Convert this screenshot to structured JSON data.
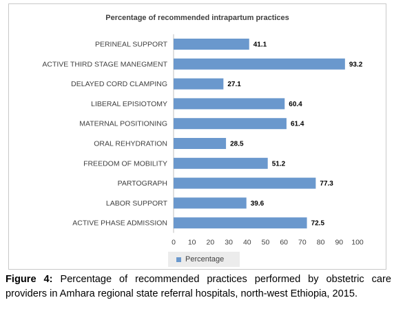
{
  "chart_data": {
    "type": "bar",
    "orientation": "horizontal",
    "title": "Percentage of recommended intrapartum practices",
    "categories": [
      "PERINEAL SUPPORT",
      "ACTIVE THIRD STAGE MANEGMENT",
      "DELAYED CORD CLAMPING",
      "LIBERAL EPISIOTOMY",
      "MATERNAL POSITIONING",
      "ORAL REHYDRATION",
      "FREEDOM OF MOBILITY",
      "PARTOGRAPH",
      "LABOR SUPPORT",
      "ACTIVE PHASE ADMISSION"
    ],
    "series": [
      {
        "name": "Percentage",
        "values": [
          41.1,
          93.2,
          27.1,
          60.4,
          61.4,
          28.5,
          51.2,
          77.3,
          39.6,
          72.5
        ],
        "data_labels": [
          "41.1",
          "93.2",
          "27.1",
          "60.4",
          "61.4",
          "28.5",
          "51.2",
          "77.3",
          "39.6",
          "72.5"
        ]
      }
    ],
    "xlim": [
      0,
      100
    ],
    "x_ticks": [
      "0",
      "10",
      "20",
      "30",
      "40",
      "50",
      "60",
      "70",
      "80",
      "90",
      "100"
    ],
    "xlabel": "",
    "ylabel": "",
    "grid": false,
    "legend_position": "bottom",
    "bar_color": "#6a98cd"
  },
  "caption": {
    "label": "Figure 4:",
    "text": " Percentage of recommended practices performed by obstetric care providers in Amhara regional state referral hospitals, north-west Ethiopia, 2015."
  }
}
